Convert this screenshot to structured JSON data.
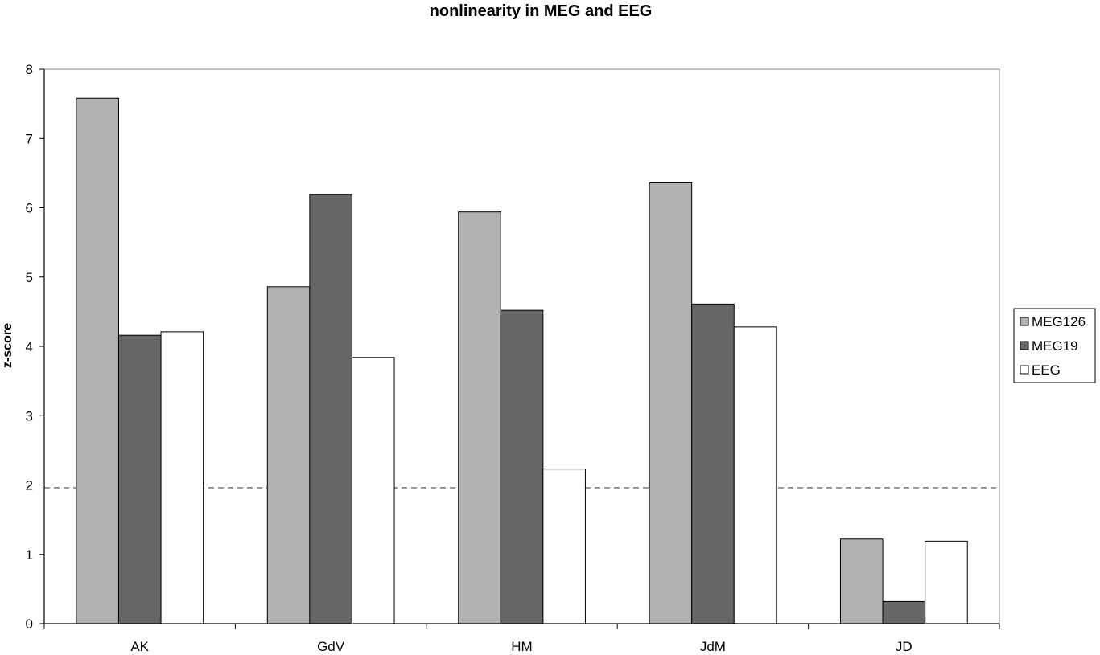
{
  "chart_data": {
    "type": "bar",
    "title": "nonlinearity in MEG and EEG",
    "xlabel": "",
    "ylabel": "z-score",
    "categories": [
      "AK",
      "GdV",
      "HM",
      "JdM",
      "JD"
    ],
    "series": [
      {
        "name": "MEG126",
        "color": "#b2b2b2",
        "values": [
          7.58,
          4.86,
          5.94,
          6.36,
          1.22
        ]
      },
      {
        "name": "MEG19",
        "color": "#666666",
        "values": [
          4.16,
          6.19,
          4.52,
          4.61,
          0.32
        ]
      },
      {
        "name": "EEG",
        "color": "#ffffff",
        "values": [
          4.21,
          3.84,
          2.23,
          4.28,
          1.19
        ]
      }
    ],
    "ylim": [
      0,
      8
    ],
    "yticks": [
      "0",
      "1",
      "2",
      "3",
      "4",
      "5",
      "6",
      "7",
      "8"
    ],
    "reference_line": {
      "y": 1.96,
      "style": "dashed",
      "color": "#808080"
    },
    "grid": false,
    "legend": "right"
  }
}
